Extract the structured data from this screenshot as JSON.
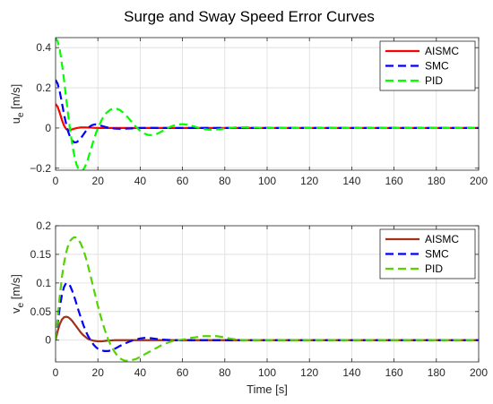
{
  "figure_title": "Surge and Sway Speed Error Curves",
  "chart_data": [
    {
      "type": "line",
      "title": "Surge and Sway Speed Error Curves",
      "xlabel": "",
      "ylabel": "u_e [m/s]",
      "ylabel_main": "u",
      "ylabel_sub": "e",
      "ylabel_unit": " [m/s]",
      "xlim": [
        0,
        200
      ],
      "ylim": [
        -0.21,
        0.45
      ],
      "xticks": [
        0,
        20,
        40,
        60,
        80,
        100,
        120,
        140,
        160,
        180,
        200
      ],
      "yticks": [
        -0.2,
        0,
        0.2,
        0.4
      ],
      "ytick_labels": [
        "−0.2",
        "0",
        "0.2",
        "0.4"
      ],
      "grid": true,
      "legend_position": "top-right",
      "series": [
        {
          "name": "AISMC",
          "color": "#ff0000",
          "dash": "solid",
          "x": [
            0,
            1,
            2,
            3,
            4,
            5,
            6,
            7,
            8,
            10,
            12,
            14,
            16,
            18,
            20,
            24,
            28,
            32,
            40,
            60,
            200
          ],
          "y": [
            0.12,
            0.105,
            0.075,
            0.04,
            0.012,
            -0.005,
            -0.012,
            -0.01,
            -0.006,
            0.0,
            0.003,
            0.003,
            0.002,
            0.001,
            0.0,
            0.0,
            0.0,
            0.0,
            0.0,
            0.0,
            0.0
          ]
        },
        {
          "name": "SMC",
          "color": "#0000ff",
          "dash": "dashed",
          "x": [
            0,
            1,
            2,
            3,
            4,
            5,
            6,
            7,
            8,
            9,
            10,
            11,
            12,
            13,
            14,
            15,
            16,
            17,
            18,
            19,
            20,
            22,
            24,
            26,
            28,
            30,
            32,
            34,
            36,
            38,
            40,
            45,
            50,
            60,
            70,
            80,
            200
          ],
          "y": [
            0.24,
            0.22,
            0.18,
            0.125,
            0.068,
            0.02,
            -0.02,
            -0.048,
            -0.065,
            -0.072,
            -0.07,
            -0.062,
            -0.05,
            -0.035,
            -0.02,
            -0.006,
            0.006,
            0.013,
            0.017,
            0.018,
            0.016,
            0.01,
            0.004,
            0.0,
            -0.003,
            -0.004,
            -0.004,
            -0.003,
            -0.002,
            -0.001,
            0.0,
            0.001,
            0.0,
            0.0,
            0.0,
            0.0,
            0.0
          ]
        },
        {
          "name": "PID",
          "color": "#00ff00",
          "dash": "dashed",
          "x": [
            0,
            1,
            2,
            3,
            4,
            5,
            6,
            7,
            8,
            9,
            10,
            11,
            12,
            13,
            14,
            15,
            16,
            17,
            18,
            19,
            20,
            22,
            24,
            26,
            28,
            30,
            32,
            34,
            36,
            38,
            40,
            42,
            44,
            46,
            48,
            50,
            52,
            54,
            56,
            58,
            60,
            62,
            64,
            66,
            68,
            70,
            72,
            74,
            76,
            78,
            80,
            85,
            90,
            95,
            100,
            110,
            120,
            200
          ],
          "y": [
            0.45,
            0.43,
            0.39,
            0.32,
            0.24,
            0.15,
            0.06,
            -0.02,
            -0.09,
            -0.145,
            -0.185,
            -0.208,
            -0.215,
            -0.21,
            -0.19,
            -0.165,
            -0.13,
            -0.095,
            -0.06,
            -0.028,
            0.0,
            0.045,
            0.075,
            0.092,
            0.098,
            0.092,
            0.077,
            0.055,
            0.03,
            0.006,
            -0.014,
            -0.028,
            -0.035,
            -0.035,
            -0.029,
            -0.018,
            -0.006,
            0.005,
            0.013,
            0.018,
            0.019,
            0.017,
            0.012,
            0.006,
            0.0,
            -0.005,
            -0.008,
            -0.009,
            -0.008,
            -0.005,
            -0.002,
            0.003,
            0.004,
            0.002,
            0.0,
            0.0,
            0.0,
            0.0
          ]
        }
      ]
    },
    {
      "type": "line",
      "title": "",
      "xlabel": "Time [s]",
      "ylabel": "v_e [m/s]",
      "ylabel_main": "v",
      "ylabel_sub": "e",
      "ylabel_unit": " [m/s]",
      "xlim": [
        0,
        200
      ],
      "ylim": [
        -0.038,
        0.2
      ],
      "xticks": [
        0,
        20,
        40,
        60,
        80,
        100,
        120,
        140,
        160,
        180,
        200
      ],
      "yticks": [
        0,
        0.05,
        0.1,
        0.15,
        0.2
      ],
      "ytick_labels": [
        "0",
        "0.05",
        "0.1",
        "0.15",
        "0.2"
      ],
      "grid": true,
      "legend_position": "top-right",
      "series": [
        {
          "name": "AISMC",
          "color": "#a0311a",
          "dash": "solid",
          "x": [
            0,
            1,
            2,
            3,
            4,
            5,
            6,
            7,
            8,
            9,
            10,
            11,
            12,
            13,
            14,
            15,
            16,
            18,
            20,
            22,
            24,
            26,
            28,
            30,
            35,
            40,
            60,
            200
          ],
          "y": [
            0.0,
            0.016,
            0.028,
            0.036,
            0.04,
            0.041,
            0.04,
            0.037,
            0.033,
            0.028,
            0.023,
            0.018,
            0.013,
            0.009,
            0.006,
            0.003,
            0.001,
            -0.001,
            -0.002,
            -0.002,
            -0.001,
            -0.0005,
            0.0,
            0.0,
            0.0,
            0.0,
            0.0,
            0.0
          ]
        },
        {
          "name": "SMC",
          "color": "#0000ff",
          "dash": "dashed",
          "x": [
            0,
            1,
            2,
            3,
            4,
            5,
            6,
            7,
            8,
            9,
            10,
            11,
            12,
            13,
            14,
            15,
            16,
            17,
            18,
            19,
            20,
            21,
            22,
            23,
            24,
            25,
            26,
            27,
            28,
            29,
            30,
            31,
            32,
            34,
            36,
            38,
            40,
            42,
            44,
            46,
            48,
            50,
            55,
            60,
            70,
            80,
            200
          ],
          "y": [
            0.0,
            0.03,
            0.058,
            0.079,
            0.093,
            0.1,
            0.099,
            0.094,
            0.085,
            0.074,
            0.062,
            0.05,
            0.039,
            0.028,
            0.018,
            0.01,
            0.003,
            -0.003,
            -0.008,
            -0.012,
            -0.015,
            -0.017,
            -0.018,
            -0.019,
            -0.019,
            -0.019,
            -0.018,
            -0.017,
            -0.015,
            -0.013,
            -0.011,
            -0.009,
            -0.007,
            -0.004,
            -0.001,
            0.001,
            0.003,
            0.004,
            0.004,
            0.003,
            0.002,
            0.001,
            0.0,
            0.0,
            0.0,
            0.0,
            0.0
          ]
        },
        {
          "name": "PID",
          "color": "#55d200",
          "dash": "dashed",
          "x": [
            0,
            1,
            2,
            3,
            4,
            5,
            6,
            7,
            8,
            9,
            10,
            11,
            12,
            13,
            14,
            15,
            16,
            17,
            18,
            19,
            20,
            21,
            22,
            23,
            24,
            25,
            26,
            27,
            28,
            29,
            30,
            31,
            32,
            33,
            34,
            35,
            36,
            37,
            38,
            39,
            40,
            41,
            42,
            43,
            44,
            45,
            46,
            47,
            48,
            49,
            50,
            52,
            54,
            56,
            58,
            60,
            62,
            64,
            66,
            68,
            70,
            72,
            74,
            76,
            78,
            80,
            82,
            84,
            86,
            88,
            90,
            95,
            100,
            110,
            120,
            200
          ],
          "y": [
            0.0,
            0.04,
            0.078,
            0.11,
            0.135,
            0.153,
            0.166,
            0.174,
            0.178,
            0.18,
            0.179,
            0.175,
            0.168,
            0.159,
            0.148,
            0.135,
            0.12,
            0.105,
            0.09,
            0.075,
            0.06,
            0.046,
            0.033,
            0.021,
            0.01,
            0.0,
            -0.008,
            -0.015,
            -0.021,
            -0.026,
            -0.03,
            -0.033,
            -0.035,
            -0.036,
            -0.036,
            -0.036,
            -0.035,
            -0.034,
            -0.033,
            -0.031,
            -0.029,
            -0.027,
            -0.025,
            -0.023,
            -0.021,
            -0.019,
            -0.017,
            -0.015,
            -0.013,
            -0.011,
            -0.009,
            -0.006,
            -0.003,
            -0.001,
            0.0,
            0.001,
            0.002,
            0.004,
            0.005,
            0.006,
            0.007,
            0.007,
            0.007,
            0.007,
            0.006,
            0.005,
            0.003,
            0.002,
            0.001,
            0.0,
            0.0,
            0.0,
            0.0,
            0.0,
            0.0,
            0.0
          ]
        }
      ]
    }
  ]
}
